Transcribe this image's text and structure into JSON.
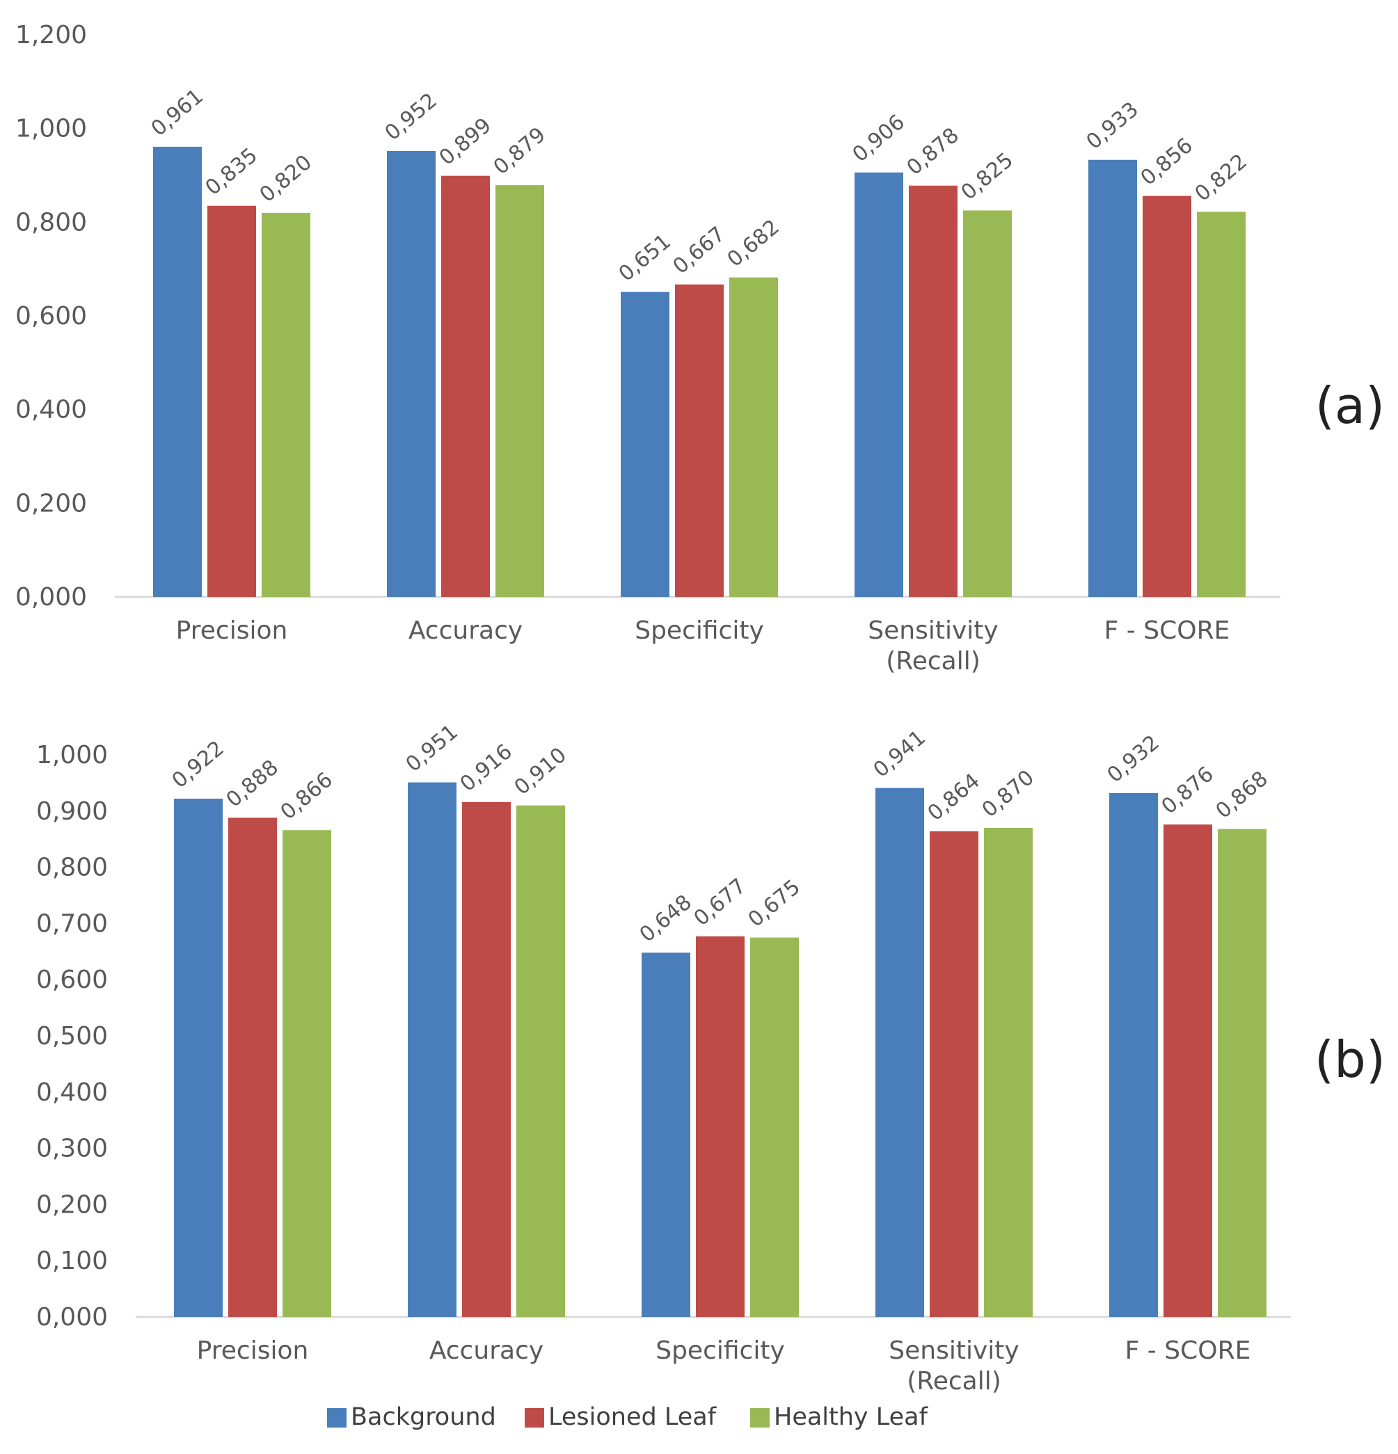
{
  "chart_data": [
    {
      "type": "bar",
      "panel_label": "(a)",
      "categories": [
        "Precision",
        "Accuracy",
        "Specificity",
        "Sensitivity\n(Recall)",
        "F - SCORE"
      ],
      "series": [
        {
          "name": "Background",
          "values": [
            0.961,
            0.952,
            0.651,
            0.906,
            0.933
          ],
          "labels": [
            "0,961",
            "0,952",
            "0,651",
            "0,906",
            "0,933"
          ]
        },
        {
          "name": "Lesioned Leaf",
          "values": [
            0.835,
            0.899,
            0.667,
            0.878,
            0.856
          ],
          "labels": [
            "0,835",
            "0,899",
            "0,667",
            "0,878",
            "0,856"
          ]
        },
        {
          "name": "Healthy Leaf",
          "values": [
            0.82,
            0.879,
            0.682,
            0.825,
            0.822
          ],
          "labels": [
            "0,820",
            "0,879",
            "0,682",
            "0,825",
            "0,822"
          ]
        }
      ],
      "yticks": [
        0,
        0.2,
        0.4,
        0.6,
        0.8,
        1.0,
        1.2
      ],
      "ytick_labels": [
        "0,000",
        "0,200",
        "0,400",
        "0,600",
        "0,800",
        "1,000",
        "1,200"
      ],
      "ylim": [
        0,
        1.2
      ],
      "grid": false
    },
    {
      "type": "bar",
      "panel_label": "(b)",
      "categories": [
        "Precision",
        "Accuracy",
        "Specificity",
        "Sensitivity\n(Recall)",
        "F - SCORE"
      ],
      "series": [
        {
          "name": "Background",
          "values": [
            0.922,
            0.951,
            0.648,
            0.941,
            0.932
          ],
          "labels": [
            "0,922",
            "0,951",
            "0,648",
            "0,941",
            "0,932"
          ]
        },
        {
          "name": "Lesioned Leaf",
          "values": [
            0.888,
            0.916,
            0.677,
            0.864,
            0.876
          ],
          "labels": [
            "0,888",
            "0,916",
            "0,677",
            "0,864",
            "0,876"
          ]
        },
        {
          "name": "Healthy Leaf",
          "values": [
            0.866,
            0.91,
            0.675,
            0.87,
            0.868
          ],
          "labels": [
            "0,866",
            "0,910",
            "0,675",
            "0,870",
            "0,868"
          ]
        }
      ],
      "yticks": [
        0,
        0.1,
        0.2,
        0.3,
        0.4,
        0.5,
        0.6,
        0.7,
        0.8,
        0.9,
        1.0
      ],
      "ytick_labels": [
        "0,000",
        "0,100",
        "0,200",
        "0,300",
        "0,400",
        "0,500",
        "0,600",
        "0,700",
        "0,800",
        "0,900",
        "1,000"
      ],
      "ylim": [
        0,
        1.0
      ],
      "grid": false
    }
  ],
  "legend": {
    "position": "bottom-center",
    "items": [
      {
        "name": "Background",
        "color": "#4a7ebb"
      },
      {
        "name": "Lesioned Leaf",
        "color": "#be4b48"
      },
      {
        "name": "Healthy Leaf",
        "color": "#98b954"
      }
    ]
  },
  "colors": {
    "series": [
      "#4a7ebb",
      "#be4b48",
      "#98b954"
    ],
    "axis": "#d9d9d9",
    "text": "#595959"
  }
}
